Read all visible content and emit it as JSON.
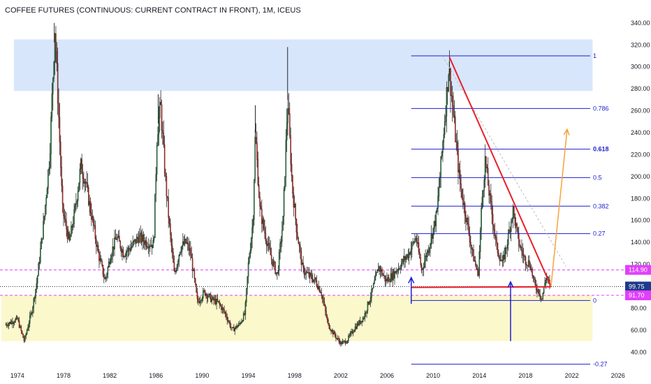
{
  "chart_data": {
    "type": "candlestick",
    "title": "COFFEE FUTURES (CONTINUOUS: CURRENT CONTRACT IN FRONT), 1M, ICEUS",
    "xlim": [
      1972.5,
      2026.5
    ],
    "ylim": [
      30,
      345
    ],
    "y_ticks": [
      40,
      60,
      80,
      100,
      120,
      140,
      160,
      180,
      200,
      220,
      240,
      260,
      280,
      300,
      320,
      340
    ],
    "y_tick_labels": [
      "40.00",
      "60.00",
      "80.00",
      "100.00",
      "120.00",
      "140.00",
      "160.00",
      "180.00",
      "200.00",
      "220.00",
      "240.00",
      "260.00",
      "280.00",
      "300.00",
      "320.00",
      "340.00"
    ],
    "x_ticks": [
      1974,
      1978,
      1982,
      1986,
      1990,
      1994,
      1998,
      2002,
      2006,
      2010,
      2014,
      2018,
      2022,
      2026
    ],
    "price_path": [
      [
        1973.0,
        65
      ],
      [
        1974.0,
        70
      ],
      [
        1974.6,
        50
      ],
      [
        1975.3,
        80
      ],
      [
        1975.7,
        105
      ],
      [
        1976.3,
        160
      ],
      [
        1976.8,
        220
      ],
      [
        1977.25,
        335
      ],
      [
        1977.6,
        250
      ],
      [
        1977.9,
        170
      ],
      [
        1978.5,
        140
      ],
      [
        1979.0,
        170
      ],
      [
        1979.5,
        210
      ],
      [
        1979.9,
        195
      ],
      [
        1980.5,
        160
      ],
      [
        1981.0,
        130
      ],
      [
        1981.6,
        105
      ],
      [
        1982.1,
        130
      ],
      [
        1982.6,
        145
      ],
      [
        1983.2,
        130
      ],
      [
        1983.8,
        135
      ],
      [
        1984.5,
        145
      ],
      [
        1985.2,
        140
      ],
      [
        1985.8,
        138
      ],
      [
        1986.1,
        240
      ],
      [
        1986.4,
        265
      ],
      [
        1986.8,
        200
      ],
      [
        1987.2,
        150
      ],
      [
        1987.6,
        110
      ],
      [
        1988.1,
        135
      ],
      [
        1988.6,
        140
      ],
      [
        1989.0,
        130
      ],
      [
        1989.6,
        85
      ],
      [
        1990.2,
        95
      ],
      [
        1990.8,
        88
      ],
      [
        1991.4,
        85
      ],
      [
        1992.0,
        75
      ],
      [
        1992.6,
        60
      ],
      [
        1993.2,
        65
      ],
      [
        1993.7,
        75
      ],
      [
        1994.0,
        120
      ],
      [
        1994.4,
        160
      ],
      [
        1994.6,
        240
      ],
      [
        1995.0,
        170
      ],
      [
        1995.5,
        145
      ],
      [
        1996.0,
        125
      ],
      [
        1996.5,
        110
      ],
      [
        1997.0,
        160
      ],
      [
        1997.4,
        270
      ],
      [
        1997.8,
        190
      ],
      [
        1998.2,
        150
      ],
      [
        1998.7,
        115
      ],
      [
        1999.2,
        110
      ],
      [
        1999.8,
        105
      ],
      [
        2000.3,
        95
      ],
      [
        2000.9,
        65
      ],
      [
        2001.5,
        55
      ],
      [
        2002.0,
        48
      ],
      [
        2002.5,
        50
      ],
      [
        2003.2,
        62
      ],
      [
        2004.0,
        72
      ],
      [
        2004.7,
        95
      ],
      [
        2005.3,
        118
      ],
      [
        2005.9,
        105
      ],
      [
        2006.5,
        110
      ],
      [
        2007.2,
        120
      ],
      [
        2007.9,
        130
      ],
      [
        2008.5,
        145
      ],
      [
        2009.0,
        115
      ],
      [
        2009.6,
        135
      ],
      [
        2010.3,
        165
      ],
      [
        2010.9,
        240
      ],
      [
        2011.35,
        300
      ],
      [
        2011.8,
        250
      ],
      [
        2012.3,
        195
      ],
      [
        2012.9,
        160
      ],
      [
        2013.4,
        130
      ],
      [
        2013.9,
        110
      ],
      [
        2014.2,
        175
      ],
      [
        2014.5,
        215
      ],
      [
        2014.9,
        180
      ],
      [
        2015.5,
        135
      ],
      [
        2016.0,
        120
      ],
      [
        2016.5,
        145
      ],
      [
        2016.9,
        170
      ],
      [
        2017.4,
        140
      ],
      [
        2017.9,
        125
      ],
      [
        2018.4,
        120
      ],
      [
        2018.8,
        100
      ],
      [
        2019.2,
        95
      ],
      [
        2019.4,
        88
      ],
      [
        2019.8,
        110
      ],
      [
        2020.1,
        99.75
      ]
    ],
    "price_spikes": [
      [
        1977.2,
        340
      ],
      [
        1986.2,
        275
      ],
      [
        1994.6,
        265
      ],
      [
        1997.4,
        318
      ],
      [
        2011.4,
        305
      ]
    ],
    "current_price": 99.75,
    "support_line": {
      "x0": 2008.1,
      "x1": 2020.2,
      "y0": 99.0,
      "y1": 99.5
    },
    "downtrend_line": {
      "x0": 2011.4,
      "y0": 309,
      "x1": 2020.2,
      "y1": 100
    },
    "fib_dotted_line": {
      "x0": 2010.8,
      "y0": 310,
      "x1": 2021.5,
      "y1": 118
    },
    "orange_arrow": {
      "x0": 2020.2,
      "y0": 100,
      "x1": 2021.6,
      "y1": 243
    },
    "blue_arrows": [
      {
        "x": 2008.1,
        "y_from": 84,
        "y_to": 108
      },
      {
        "x": 2016.7,
        "y_from": 50,
        "y_to": 104
      }
    ],
    "zones": [
      {
        "name": "upper-resistance-zone",
        "x0": 1973.7,
        "x1": 2023.8,
        "y0": 278,
        "y1": 325,
        "color": "#d3e3fb"
      },
      {
        "name": "lower-support-zone",
        "x0": 1972.6,
        "x1": 2023.8,
        "y0": 50,
        "y1": 92,
        "color": "#fbf7c6"
      }
    ],
    "horizontal_lines": [
      {
        "name": "resistance-line",
        "y": 114.9,
        "color": "#e040fb",
        "style": "dashed"
      },
      {
        "name": "support-line-dashed",
        "y": 91.7,
        "color": "#e040fb",
        "style": "dashed"
      },
      {
        "name": "current-price-line",
        "y": 99.75,
        "color": "#131722",
        "style": "dotted"
      }
    ],
    "fib_levels": [
      {
        "label": "1",
        "y": 310
      },
      {
        "label": "0.786",
        "y": 262
      },
      {
        "label": "0.618",
        "y": 225,
        "bold": true
      },
      {
        "label": "0.5",
        "y": 199
      },
      {
        "label": "0.382",
        "y": 173
      },
      {
        "label": "0.27",
        "y": 148
      },
      {
        "label": "0",
        "y": 87
      },
      {
        "label": "-0.27",
        "y": 29
      }
    ],
    "fib_x": [
      2008.1,
      2023.6
    ],
    "fib_color": "#1f1fd1",
    "price_tags": [
      {
        "label": "114.90",
        "y": 114.9,
        "color": "#e040fb"
      },
      {
        "label": "99.75",
        "y": 99.75,
        "color": "#1e3a8a"
      },
      {
        "label": "91.70",
        "y": 91.7,
        "color": "#e040fb"
      }
    ],
    "colors": {
      "up": "#1a7f3c",
      "down": "#d1261f",
      "trend": "#e8202a",
      "arrow_up": "#f5a33c",
      "arrow_blue": "#1f1fd1",
      "grid": "#ffffff"
    }
  }
}
